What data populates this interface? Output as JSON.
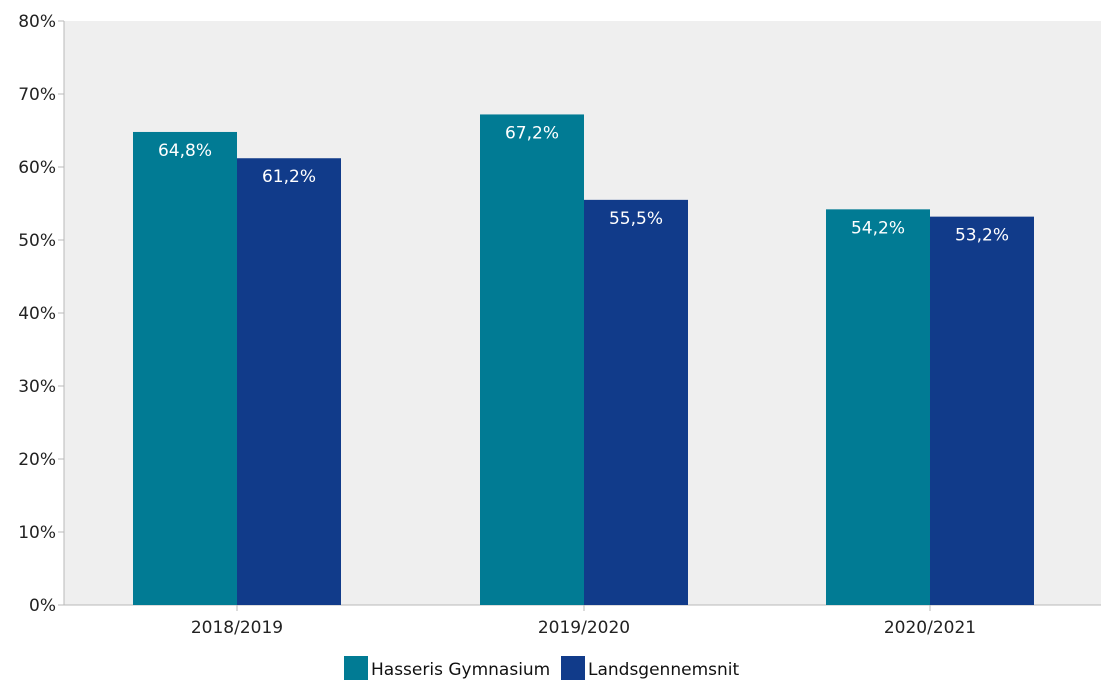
{
  "colors": {
    "plot_background": "#efefef",
    "axis": "#b8b8b8",
    "series_1": "#017b94",
    "series_2": "#113b8a",
    "bar_label": "#ffffff"
  },
  "legend": {
    "placement": "bottom-center",
    "items": [
      {
        "label": "Hasseris Gymnasium",
        "color": "#017b94"
      },
      {
        "label": "Landsgennemsnit",
        "color": "#113b8a"
      }
    ]
  },
  "chart_data": {
    "type": "bar",
    "title": "",
    "xlabel": "",
    "ylabel": "",
    "categories": [
      "2018/2019",
      "2019/2020",
      "2020/2021"
    ],
    "ylim": [
      0,
      80
    ],
    "yticks": [
      0,
      10,
      20,
      30,
      40,
      50,
      60,
      70,
      80
    ],
    "ytick_labels": [
      "0%",
      "10%",
      "20%",
      "30%",
      "40%",
      "50%",
      "60%",
      "70%",
      "80%"
    ],
    "grid": false,
    "series": [
      {
        "name": "Hasseris Gymnasium",
        "values": [
          64.8,
          67.2,
          54.2
        ],
        "labels": [
          "64,8%",
          "67,2%",
          "54,2%"
        ]
      },
      {
        "name": "Landsgennemsnit",
        "values": [
          61.2,
          55.5,
          53.2
        ],
        "labels": [
          "61,2%",
          "55,5%",
          "53,2%"
        ]
      }
    ]
  }
}
